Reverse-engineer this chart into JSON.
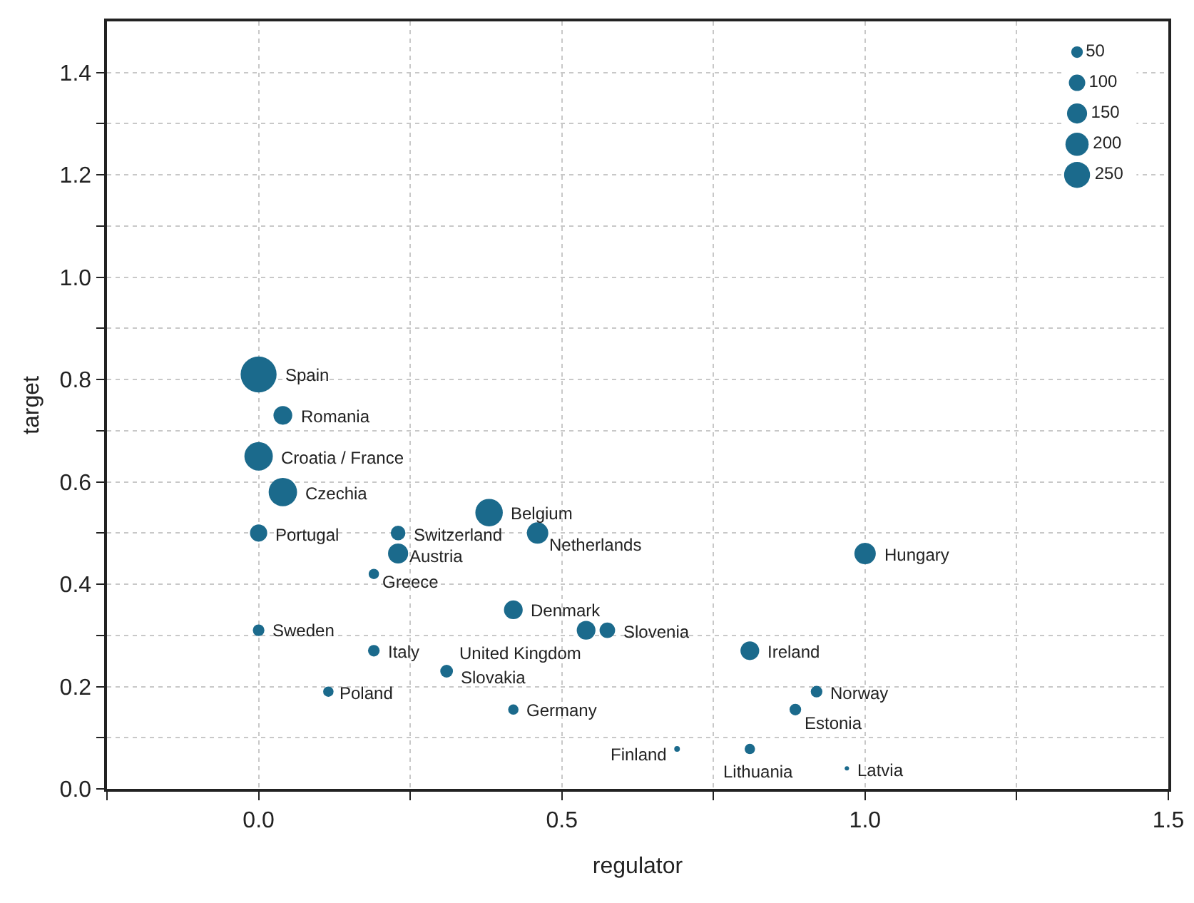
{
  "chart_data": {
    "type": "bubble",
    "xlabel": "regulator",
    "ylabel": "target",
    "color": "#1b6a8c",
    "grid": true,
    "x": [
      0,
      0.04,
      0,
      0.04,
      0,
      0.23,
      0.23,
      0.19,
      0.38,
      0.46,
      1.0,
      0.42,
      0,
      0.19,
      0.31,
      0.115,
      0.42,
      0.54,
      0.575,
      0.81,
      0.92,
      0.885,
      0.69,
      0.81,
      0.97
    ],
    "values": [
      0.81,
      0.73,
      0.65,
      0.58,
      0.5,
      0.5,
      0.46,
      0.42,
      0.54,
      0.5,
      0.46,
      0.35,
      0.31,
      0.27,
      0.23,
      0.19,
      0.155,
      0.31,
      0.31,
      0.27,
      0.19,
      0.155,
      0.078,
      0.078,
      0.04
    ],
    "sizes": [
      480,
      130,
      300,
      300,
      110,
      80,
      150,
      40,
      280,
      170,
      170,
      130,
      50,
      50,
      60,
      40,
      40,
      130,
      90,
      130,
      50,
      50,
      12,
      40,
      7
    ],
    "size_legend": [
      50,
      100,
      150,
      200,
      250
    ],
    "annotations": [
      {
        "text": "Spain",
        "x": 0,
        "y": 0.81
      },
      {
        "text": "Romania",
        "x": 0.04,
        "y": 0.73
      },
      {
        "text": "Croatia / France",
        "x": 0,
        "y": 0.65
      },
      {
        "text": "Czechia",
        "x": 0.04,
        "y": 0.58
      },
      {
        "text": "Portugal",
        "x": 0,
        "y": 0.5
      },
      {
        "text": "Switzerland",
        "x": 0.23,
        "y": 0.5
      },
      {
        "text": "Austria",
        "x": 0.23,
        "y": 0.46
      },
      {
        "text": "Greece",
        "x": 0.19,
        "y": 0.42
      },
      {
        "text": "Belgium",
        "x": 0.38,
        "y": 0.54
      },
      {
        "text": "Netherlands",
        "x": 0.46,
        "y": 0.5
      },
      {
        "text": "Hungary",
        "x": 1.0,
        "y": 0.46
      },
      {
        "text": "Denmark",
        "x": 0.42,
        "y": 0.35
      },
      {
        "text": "Sweden",
        "x": 0,
        "y": 0.31
      },
      {
        "text": "Italy",
        "x": 0.19,
        "y": 0.27
      },
      {
        "text": "Slovakia",
        "x": 0.31,
        "y": 0.23
      },
      {
        "text": "Poland",
        "x": 0.115,
        "y": 0.19
      },
      {
        "text": "Germany",
        "x": 0.42,
        "y": 0.155
      },
      {
        "text": "United Kingdom",
        "x": 0.54,
        "y": 0.31
      },
      {
        "text": "Slovenia",
        "x": 0.575,
        "y": 0.31
      },
      {
        "text": "Ireland",
        "x": 0.81,
        "y": 0.27
      },
      {
        "text": "Norway",
        "x": 0.92,
        "y": 0.19
      },
      {
        "text": "Estonia",
        "x": 0.885,
        "y": 0.155
      },
      {
        "text": "Finland",
        "x": 0.69,
        "y": 0.078
      },
      {
        "text": "Lithuania",
        "x": 0.81,
        "y": 0.078
      },
      {
        "text": "Latvia",
        "x": 0.97,
        "y": 0.04
      }
    ],
    "xlim": [
      -0.25,
      1.5
    ],
    "xticks": [
      {
        "value": -0.25,
        "label": null
      },
      {
        "value": 0,
        "label": "0.0"
      },
      {
        "value": 0.25,
        "label": null
      },
      0.5,
      {
        "value": 0.75,
        "label": null
      },
      {
        "value": 1,
        "label": "1.0"
      },
      {
        "value": 1.25,
        "label": null
      },
      1.5
    ],
    "ylim": [
      0,
      1.5
    ],
    "yticks": [
      {
        "value": 0,
        "label": "0.0"
      },
      {
        "value": 0.1,
        "label": null
      },
      0.2,
      {
        "value": 0.3,
        "label": null
      },
      0.4,
      {
        "value": 0.5,
        "label": null
      },
      0.6,
      {
        "value": 0.7,
        "label": null
      },
      0.8,
      {
        "value": 0.9,
        "label": null
      },
      {
        "value": 1,
        "label": "1.0"
      },
      {
        "value": 1.1,
        "label": null
      },
      1.2,
      {
        "value": 1.3,
        "label": null
      },
      1.4
    ]
  }
}
